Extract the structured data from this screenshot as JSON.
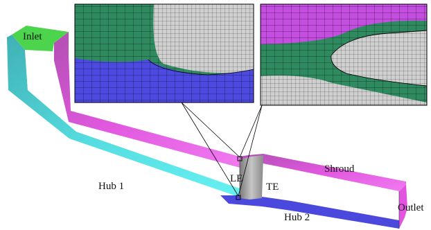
{
  "labels": {
    "inlet": "Inlet",
    "outlet": "Outlet",
    "hub1": "Hub 1",
    "hub2": "Hub 2",
    "shroud": "Shroud",
    "le": "LE",
    "te": "TE"
  },
  "colors": {
    "inlet": "#4dd44d",
    "shroud": "#e254e0",
    "hub1": "#56e6e6",
    "hub2": "#4a48dd",
    "blade": "#a9a9a9",
    "mesh_green": "#2f8a60",
    "mesh_blue": "#4c4ae0",
    "mesh_magenta": "#c34ee0",
    "mesh_gray": "#cfcfcf"
  }
}
